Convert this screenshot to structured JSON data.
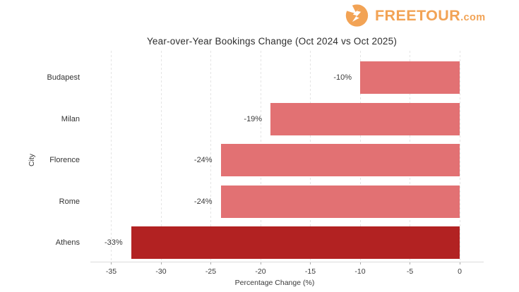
{
  "brand": {
    "name": "FREETOUR",
    "tld": ".com",
    "color": "#F2A355",
    "icon": "freetour-flame-f-icon"
  },
  "chart_data": {
    "type": "bar",
    "orientation": "horizontal",
    "title": "Year-over-Year Bookings Change (Oct 2024 vs Oct 2025)",
    "xlabel": "Percentage Change (%)",
    "ylabel": "City",
    "categories": [
      "Budapest",
      "Milan",
      "Florence",
      "Rome",
      "Athens"
    ],
    "values": [
      -10,
      -19,
      -24,
      -24,
      -33
    ],
    "labels": [
      "-10%",
      "-19%",
      "-24%",
      "-24%",
      "-33%"
    ],
    "bar_colors": [
      "#E27173",
      "#E27173",
      "#E27173",
      "#E27173",
      "#B22222"
    ],
    "highlight_color": "#B22222",
    "base_bar_color": "#E27173",
    "xticks": [
      -35,
      -30,
      -25,
      -20,
      -15,
      -10,
      -5,
      0
    ],
    "xtick_labels": [
      "-35",
      "-30",
      "-25",
      "-20",
      "-15",
      "-10",
      "-5",
      "0"
    ],
    "xlim": [
      -37,
      0
    ],
    "grid": "dashed-vertical",
    "legend": "none",
    "background": "#ffffff"
  }
}
